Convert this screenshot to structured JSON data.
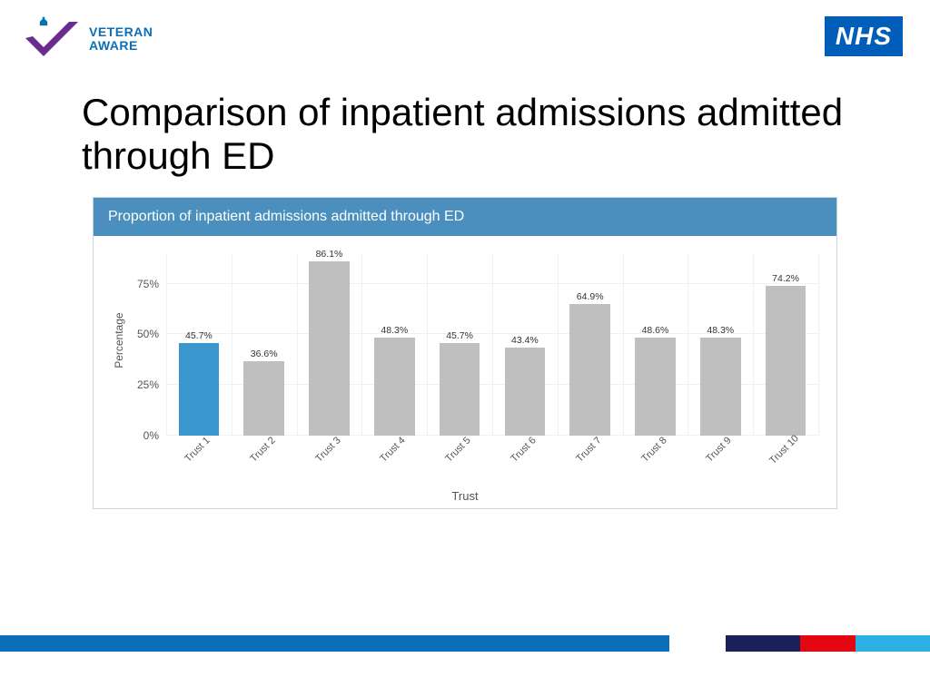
{
  "logos": {
    "left_line1": "VETERAN",
    "left_line2": "AWARE",
    "left_text_color": "#0b6fb8",
    "checkmark_color": "#6b2c91",
    "nhs_label": "NHS",
    "nhs_bg": "#005eb8",
    "nhs_text": "#ffffff"
  },
  "page_title": "Comparison of inpatient admissions admitted through ED",
  "chart": {
    "type": "bar",
    "header_text": "Proportion of inpatient admissions admitted through ED",
    "header_bg": "#4a8fbd",
    "header_text_color": "#ffffff",
    "y_axis_title": "Percentage",
    "x_axis_title": "Trust",
    "y_ticks": [
      "0%",
      "25%",
      "50%",
      "75%"
    ],
    "y_tick_values": [
      0,
      25,
      50,
      75
    ],
    "ylim": [
      0,
      90
    ],
    "grid_color": "#eef2f5",
    "default_bar_color": "#bfbfbf",
    "highlight_bar_color": "#3a96cc",
    "data_label_fontsize": 10.5,
    "axis_label_fontsize": 12,
    "bars": [
      {
        "label": "Trust 1",
        "value": 45.7,
        "value_label": "45.7%",
        "highlighted": true
      },
      {
        "label": "Trust 2",
        "value": 36.6,
        "value_label": "36.6%",
        "highlighted": false
      },
      {
        "label": "Trust 3",
        "value": 86.1,
        "value_label": "86.1%",
        "highlighted": false
      },
      {
        "label": "Trust 4",
        "value": 48.3,
        "value_label": "48.3%",
        "highlighted": false
      },
      {
        "label": "Trust 5",
        "value": 45.7,
        "value_label": "45.7%",
        "highlighted": false
      },
      {
        "label": "Trust 6",
        "value": 43.4,
        "value_label": "43.4%",
        "highlighted": false
      },
      {
        "label": "Trust 7",
        "value": 64.9,
        "value_label": "64.9%",
        "highlighted": false
      },
      {
        "label": "Trust 8",
        "value": 48.6,
        "value_label": "48.6%",
        "highlighted": false
      },
      {
        "label": "Trust 9",
        "value": 48.3,
        "value_label": "48.3%",
        "highlighted": false
      },
      {
        "label": "Trust 10",
        "value": 74.2,
        "value_label": "74.2%",
        "highlighted": false
      }
    ]
  },
  "footer_stripe": {
    "segments": [
      {
        "color": "#0b6fb8",
        "width_pct": 72
      },
      {
        "color": "#ffffff",
        "width_pct": 6
      },
      {
        "color": "#1b1f5a",
        "width_pct": 8
      },
      {
        "color": "#e30613",
        "width_pct": 6
      },
      {
        "color": "#2db0e4",
        "width_pct": 8
      }
    ]
  }
}
